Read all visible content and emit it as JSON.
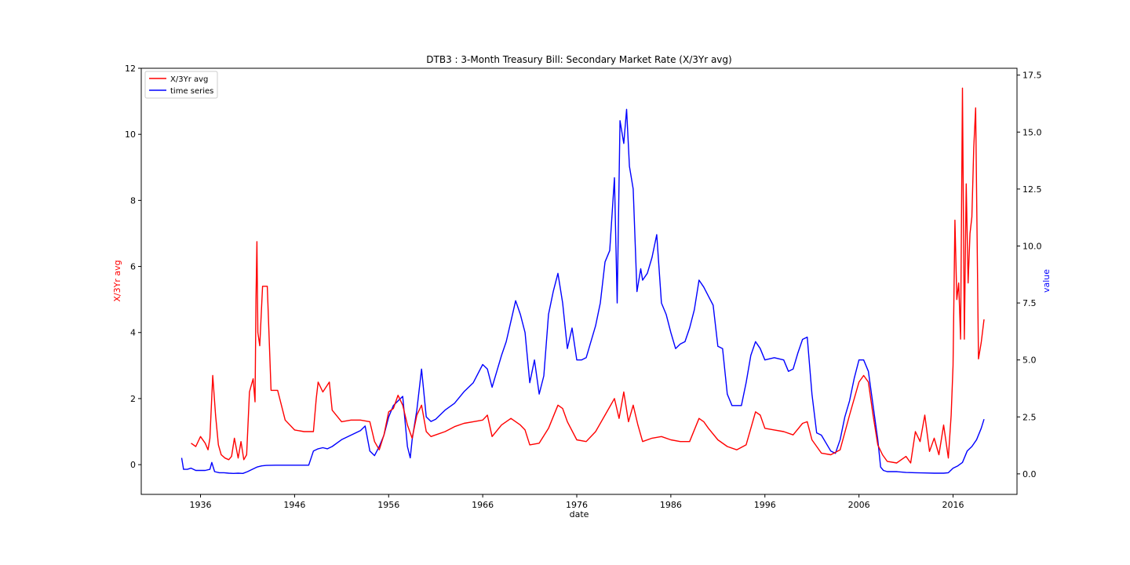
{
  "chart_data": {
    "type": "line",
    "title": "DTB3 :  3-Month Treasury Bill: Secondary Market Rate (X/3Yr avg)",
    "xlabel": "date",
    "ylabel_left": "X/3Yr avg",
    "ylabel_right": "value",
    "xlim": [
      1929.7,
      2022.8
    ],
    "ylim_left": [
      -0.9,
      12.0
    ],
    "ylim_right": [
      -0.9,
      17.8
    ],
    "x_ticks": [
      1936,
      1946,
      1956,
      1966,
      1976,
      1986,
      1996,
      2006,
      2016
    ],
    "x_tick_labels": [
      "1936",
      "1946",
      "1956",
      "1966",
      "1976",
      "1986",
      "1996",
      "2006",
      "2016"
    ],
    "y_left_ticks": [
      0,
      2,
      4,
      6,
      8,
      10,
      12
    ],
    "y_left_tick_labels": [
      "0",
      "2",
      "4",
      "6",
      "8",
      "10",
      "12"
    ],
    "y_right_ticks": [
      0.0,
      2.5,
      5.0,
      7.5,
      10.0,
      12.5,
      15.0,
      17.5
    ],
    "y_right_tick_labels": [
      "0.0",
      "2.5",
      "5.0",
      "7.5",
      "10.0",
      "12.5",
      "15.0",
      "17.5"
    ],
    "grid": false,
    "legend_position": "top-left",
    "colors": {
      "left_axis_label": "#ff0000",
      "right_axis_label": "#0000ff"
    },
    "series": [
      {
        "name": "X/3Yr avg",
        "axis": "left",
        "color": "#ff0000",
        "x": [
          1935.0,
          1935.5,
          1936.0,
          1936.5,
          1936.8,
          1937.0,
          1937.3,
          1937.6,
          1937.9,
          1938.2,
          1938.6,
          1939.0,
          1939.3,
          1939.6,
          1940.0,
          1940.3,
          1940.6,
          1940.9,
          1941.2,
          1941.4,
          1941.6,
          1941.8,
          1941.9,
          1942.0,
          1942.1,
          1942.3,
          1942.6,
          1943.1,
          1943.5,
          1944.2,
          1945.0,
          1946.0,
          1947.0,
          1948.0,
          1948.3,
          1948.5,
          1949.0,
          1949.7,
          1950.0,
          1951.0,
          1952.0,
          1953.0,
          1954.0,
          1954.5,
          1955.0,
          1955.5,
          1956.0,
          1956.5,
          1957.0,
          1957.5,
          1958.0,
          1958.5,
          1959.0,
          1959.5,
          1960.0,
          1960.5,
          1961.0,
          1962.0,
          1963.0,
          1964.0,
          1965.0,
          1966.0,
          1966.5,
          1967.0,
          1968.0,
          1969.0,
          1970.0,
          1970.5,
          1971.0,
          1972.0,
          1973.0,
          1974.0,
          1974.5,
          1975.0,
          1976.0,
          1977.0,
          1978.0,
          1979.0,
          1980.0,
          1980.5,
          1981.0,
          1981.5,
          1982.0,
          1982.5,
          1983.0,
          1984.0,
          1985.0,
          1986.0,
          1987.0,
          1988.0,
          1989.0,
          1989.5,
          1990.0,
          1991.0,
          1992.0,
          1993.0,
          1994.0,
          1995.0,
          1995.5,
          1996.0,
          1997.0,
          1998.0,
          1999.0,
          2000.0,
          2000.5,
          2001.0,
          2002.0,
          2003.0,
          2004.0,
          2005.0,
          2005.5,
          2006.0,
          2006.5,
          2007.0,
          2007.5,
          2008.0,
          2008.5,
          2009.0,
          2010.0,
          2011.0,
          2011.5,
          2012.0,
          2012.5,
          2013.0,
          2013.5,
          2014.0,
          2014.5,
          2015.0,
          2015.5,
          2015.8,
          2016.0,
          2016.2,
          2016.4,
          2016.6,
          2016.8,
          2017.0,
          2017.2,
          2017.4,
          2017.6,
          2017.8,
          2018.0,
          2018.2,
          2018.4,
          2018.7,
          2019.0,
          2019.3
        ],
        "values": [
          0.65,
          0.55,
          0.85,
          0.65,
          0.45,
          0.8,
          2.7,
          1.5,
          0.6,
          0.3,
          0.2,
          0.15,
          0.25,
          0.8,
          0.2,
          0.7,
          0.15,
          0.3,
          2.2,
          2.4,
          2.6,
          1.9,
          5.0,
          6.75,
          4.0,
          3.6,
          5.4,
          5.4,
          2.25,
          2.25,
          1.35,
          1.05,
          1.0,
          1.0,
          2.0,
          2.5,
          2.2,
          2.5,
          1.65,
          1.3,
          1.35,
          1.35,
          1.3,
          0.7,
          0.45,
          0.9,
          1.6,
          1.7,
          2.1,
          1.8,
          1.2,
          0.8,
          1.5,
          1.8,
          1.0,
          0.85,
          0.9,
          1.0,
          1.15,
          1.25,
          1.3,
          1.35,
          1.5,
          0.85,
          1.2,
          1.4,
          1.2,
          1.05,
          0.6,
          0.65,
          1.1,
          1.8,
          1.7,
          1.3,
          0.75,
          0.7,
          1.0,
          1.5,
          2.0,
          1.4,
          2.2,
          1.3,
          1.8,
          1.2,
          0.7,
          0.8,
          0.85,
          0.75,
          0.7,
          0.7,
          1.4,
          1.3,
          1.1,
          0.75,
          0.55,
          0.45,
          0.6,
          1.6,
          1.5,
          1.1,
          1.05,
          1.0,
          0.9,
          1.25,
          1.3,
          0.75,
          0.35,
          0.3,
          0.45,
          1.5,
          2.0,
          2.5,
          2.7,
          2.5,
          1.5,
          0.6,
          0.3,
          0.1,
          0.05,
          0.25,
          0.05,
          1.0,
          0.7,
          1.5,
          0.4,
          0.8,
          0.3,
          1.2,
          0.2,
          1.5,
          3.0,
          7.4,
          5.0,
          5.5,
          3.8,
          11.4,
          3.8,
          8.5,
          5.5,
          7.0,
          7.5,
          9.6,
          10.8,
          3.2,
          3.7,
          4.4
        ],
        "name_x_placeholder": null
      },
      {
        "name": "time series",
        "axis": "right",
        "color": "#0000ff",
        "x": [
          1934.0,
          1934.2,
          1934.6,
          1935.0,
          1935.5,
          1936.0,
          1936.5,
          1937.0,
          1937.2,
          1937.5,
          1938.0,
          1938.5,
          1939.0,
          1939.5,
          1940.0,
          1940.5,
          1941.0,
          1941.5,
          1942.0,
          1942.5,
          1943.0,
          1944.0,
          1945.0,
          1946.0,
          1947.0,
          1947.5,
          1948.0,
          1948.5,
          1949.0,
          1949.5,
          1950.0,
          1951.0,
          1952.0,
          1953.0,
          1953.5,
          1954.0,
          1954.5,
          1955.0,
          1955.5,
          1956.0,
          1956.5,
          1957.0,
          1957.5,
          1958.0,
          1958.3,
          1958.5,
          1959.0,
          1959.5,
          1960.0,
          1960.5,
          1961.0,
          1962.0,
          1963.0,
          1964.0,
          1965.0,
          1966.0,
          1966.5,
          1967.0,
          1967.5,
          1968.0,
          1968.5,
          1969.0,
          1969.5,
          1970.0,
          1970.5,
          1971.0,
          1971.5,
          1972.0,
          1972.5,
          1973.0,
          1973.5,
          1974.0,
          1974.5,
          1975.0,
          1975.5,
          1976.0,
          1976.5,
          1977.0,
          1977.5,
          1978.0,
          1978.5,
          1979.0,
          1979.5,
          1980.0,
          1980.3,
          1980.6,
          1981.0,
          1981.3,
          1981.6,
          1982.0,
          1982.4,
          1982.8,
          1983.0,
          1983.5,
          1984.0,
          1984.5,
          1985.0,
          1985.5,
          1986.0,
          1986.5,
          1987.0,
          1987.5,
          1988.0,
          1988.5,
          1989.0,
          1989.5,
          1990.0,
          1990.5,
          1991.0,
          1991.5,
          1992.0,
          1992.5,
          1993.0,
          1993.5,
          1994.0,
          1994.5,
          1995.0,
          1995.5,
          1996.0,
          1997.0,
          1998.0,
          1998.5,
          1999.0,
          1999.5,
          2000.0,
          2000.5,
          2001.0,
          2001.5,
          2002.0,
          2003.0,
          2003.5,
          2004.0,
          2004.5,
          2005.0,
          2005.5,
          2006.0,
          2006.5,
          2007.0,
          2007.5,
          2008.0,
          2008.3,
          2008.6,
          2009.0,
          2010.0,
          2011.0,
          2012.0,
          2013.0,
          2014.0,
          2015.0,
          2015.5,
          2016.0,
          2016.5,
          2017.0,
          2017.5,
          2018.0,
          2018.5,
          2019.0,
          2019.3
        ],
        "values": [
          0.7,
          0.2,
          0.2,
          0.25,
          0.15,
          0.15,
          0.15,
          0.2,
          0.5,
          0.1,
          0.05,
          0.05,
          0.03,
          0.02,
          0.03,
          0.02,
          0.1,
          0.2,
          0.3,
          0.35,
          0.37,
          0.38,
          0.38,
          0.38,
          0.38,
          0.38,
          1.0,
          1.1,
          1.15,
          1.1,
          1.2,
          1.5,
          1.7,
          1.9,
          2.1,
          1.0,
          0.8,
          1.2,
          1.7,
          2.5,
          3.0,
          3.2,
          3.4,
          1.2,
          0.7,
          1.5,
          2.8,
          4.6,
          2.5,
          2.3,
          2.4,
          2.8,
          3.1,
          3.6,
          4.0,
          4.8,
          4.6,
          3.8,
          4.5,
          5.2,
          5.8,
          6.7,
          7.6,
          7.0,
          6.2,
          4.0,
          5.0,
          3.5,
          4.3,
          7.0,
          8.0,
          8.8,
          7.5,
          5.5,
          6.4,
          5.0,
          5.0,
          5.1,
          5.8,
          6.5,
          7.5,
          9.3,
          9.8,
          13.0,
          7.5,
          15.5,
          14.5,
          16.0,
          13.5,
          12.5,
          8.0,
          9.0,
          8.5,
          8.8,
          9.5,
          10.5,
          7.5,
          7.0,
          6.2,
          5.5,
          5.7,
          5.8,
          6.4,
          7.2,
          8.5,
          8.2,
          7.8,
          7.4,
          5.6,
          5.5,
          3.5,
          3.0,
          3.0,
          3.0,
          4.0,
          5.2,
          5.8,
          5.5,
          5.0,
          5.1,
          5.0,
          4.5,
          4.6,
          5.3,
          5.9,
          6.0,
          3.5,
          1.8,
          1.7,
          1.0,
          0.9,
          1.5,
          2.5,
          3.2,
          4.2,
          5.0,
          5.0,
          4.5,
          3.0,
          1.5,
          0.3,
          0.15,
          0.1,
          0.1,
          0.06,
          0.05,
          0.04,
          0.03,
          0.03,
          0.05,
          0.25,
          0.35,
          0.5,
          1.0,
          1.2,
          1.5,
          2.0,
          2.4
        ],
        "name_y_placeholder": null
      }
    ]
  }
}
